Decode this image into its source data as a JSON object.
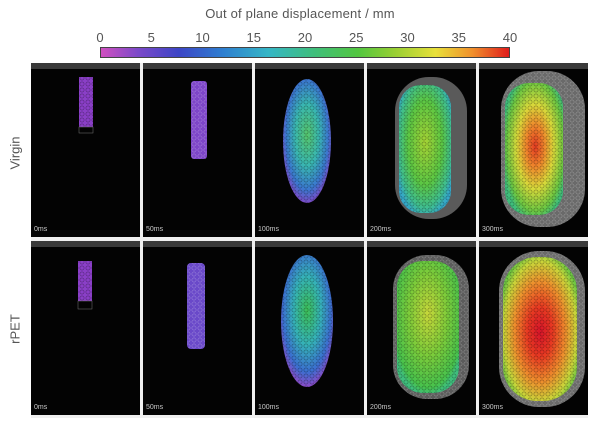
{
  "colorbar": {
    "title": "Out of plane displacement / mm",
    "ticks": [
      "0",
      "5",
      "10",
      "15",
      "20",
      "25",
      "30",
      "35",
      "40"
    ]
  },
  "rows": [
    {
      "label": "Virgin",
      "times": [
        "0ms",
        "50ms",
        "100ms",
        "200ms",
        "300ms"
      ]
    },
    {
      "label": "rPET",
      "times": [
        "0ms",
        "50ms",
        "100ms",
        "200ms",
        "300ms"
      ]
    }
  ]
}
